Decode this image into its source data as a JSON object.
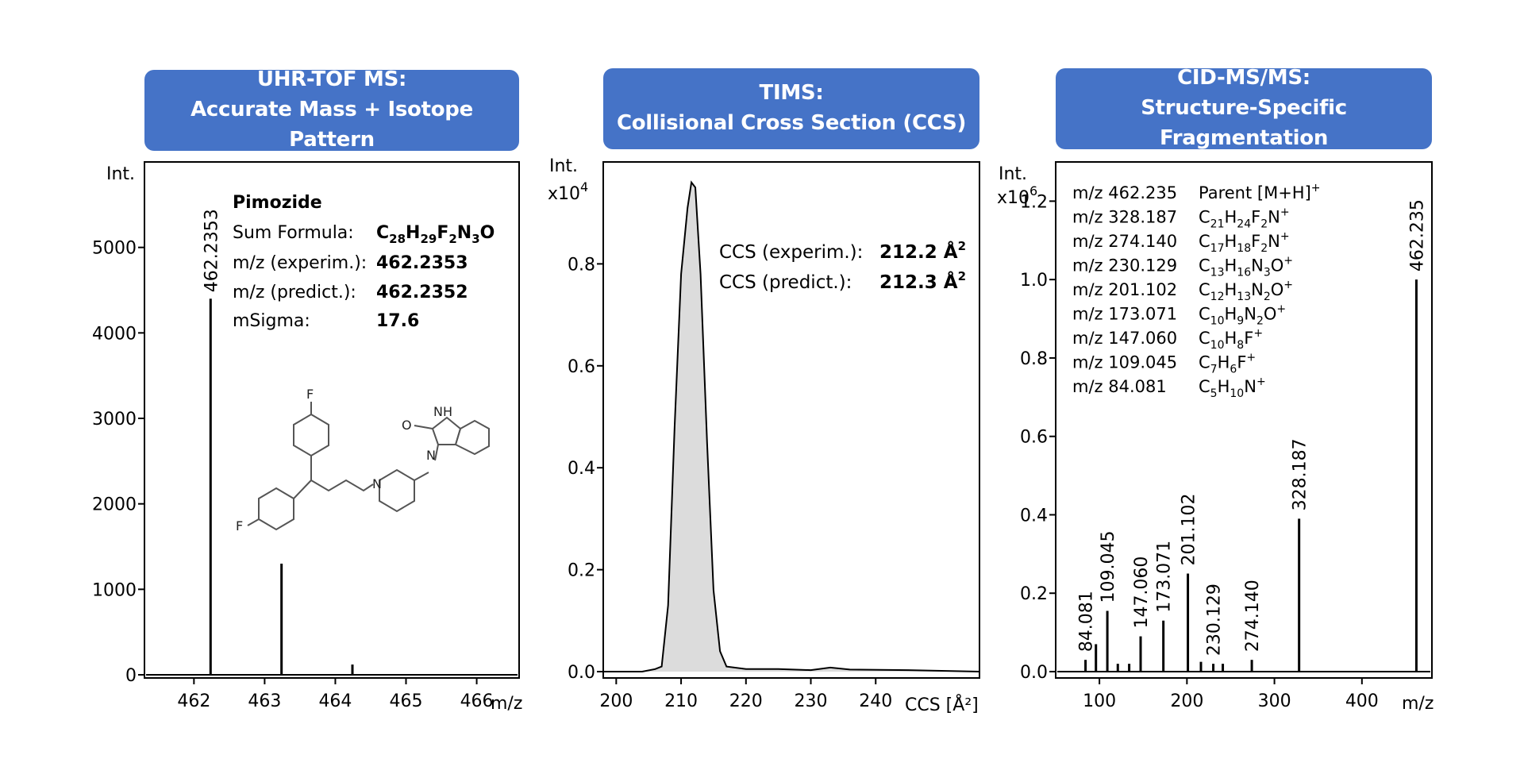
{
  "panels": [
    {
      "title_line1": "UHR-TOF MS:",
      "title_line2": "Accurate Mass + Isotope Pattern"
    },
    {
      "title_line1": "TIMS:",
      "title_line2": "Collisional Cross Section (CCS)"
    },
    {
      "title_line1": "CID-MS/MS:",
      "title_line2": "Structure-Specific Fragmentation"
    }
  ],
  "info_left": {
    "compound": "Pimozide",
    "rows": [
      {
        "label": "Sum Formula:",
        "value": "C28H29F2N3O",
        "value_rich": [
          [
            "C",
            ""
          ],
          [
            "28",
            "sub"
          ],
          [
            "H",
            ""
          ],
          [
            "29",
            "sub"
          ],
          [
            "F",
            ""
          ],
          [
            "2",
            "sub"
          ],
          [
            "N",
            ""
          ],
          [
            "3",
            "sub"
          ],
          [
            "O",
            ""
          ]
        ]
      },
      {
        "label": "m/z (experim.):",
        "value": "462.2353"
      },
      {
        "label": "m/z (predict.):",
        "value": "462.2352"
      },
      {
        "label": "mSigma:",
        "value": "17.6"
      }
    ]
  },
  "structure_atoms": {
    "fluoro_top": "F",
    "fluoro_bottom": "F",
    "amine_n": "N",
    "ring_n": "N",
    "carbonyl_o": "O",
    "imide_nh": "NH"
  },
  "info_middle": {
    "rows": [
      {
        "label": "CCS (experim.):",
        "value": "212.2 Å",
        "sup": "2"
      },
      {
        "label": "CCS (predict.):",
        "value": "212.3 Å",
        "sup": "2"
      }
    ]
  },
  "info_right": {
    "rows": [
      {
        "mz": "m/z 462.235",
        "formula": "Parent [M+H]+",
        "formula_rich": [
          [
            "Parent [M+H]",
            ""
          ],
          [
            "+",
            "sup"
          ]
        ]
      },
      {
        "mz": "m/z 328.187",
        "formula": "C21H24F2N+",
        "formula_rich": [
          [
            "C",
            ""
          ],
          [
            "21",
            "sub"
          ],
          [
            "H",
            ""
          ],
          [
            "24",
            "sub"
          ],
          [
            "F",
            ""
          ],
          [
            "2",
            "sub"
          ],
          [
            "N",
            ""
          ],
          [
            "+",
            "sup"
          ]
        ]
      },
      {
        "mz": "m/z 274.140",
        "formula": "C17H18F2N+",
        "formula_rich": [
          [
            "C",
            ""
          ],
          [
            "17",
            "sub"
          ],
          [
            "H",
            ""
          ],
          [
            "18",
            "sub"
          ],
          [
            "F",
            ""
          ],
          [
            "2",
            "sub"
          ],
          [
            "N",
            ""
          ],
          [
            "+",
            "sup"
          ]
        ]
      },
      {
        "mz": "m/z 230.129",
        "formula": "C13H16N3O+",
        "formula_rich": [
          [
            "C",
            ""
          ],
          [
            "13",
            "sub"
          ],
          [
            "H",
            ""
          ],
          [
            "16",
            "sub"
          ],
          [
            "N",
            ""
          ],
          [
            "3",
            "sub"
          ],
          [
            "O",
            ""
          ],
          [
            "+",
            "sup"
          ]
        ]
      },
      {
        "mz": "m/z 201.102",
        "formula": "C12H13N2O+",
        "formula_rich": [
          [
            "C",
            ""
          ],
          [
            "12",
            "sub"
          ],
          [
            "H",
            ""
          ],
          [
            "13",
            "sub"
          ],
          [
            "N",
            ""
          ],
          [
            "2",
            "sub"
          ],
          [
            "O",
            ""
          ],
          [
            "+",
            "sup"
          ]
        ]
      },
      {
        "mz": "m/z 173.071",
        "formula": "C10H9N2O+",
        "formula_rich": [
          [
            "C",
            ""
          ],
          [
            "10",
            "sub"
          ],
          [
            "H",
            ""
          ],
          [
            "9",
            "sub"
          ],
          [
            "N",
            ""
          ],
          [
            "2",
            "sub"
          ],
          [
            "O",
            ""
          ],
          [
            "+",
            "sup"
          ]
        ]
      },
      {
        "mz": "m/z 147.060",
        "formula": "C10H8F+",
        "formula_rich": [
          [
            "C",
            ""
          ],
          [
            "10",
            "sub"
          ],
          [
            "H",
            ""
          ],
          [
            "8",
            "sub"
          ],
          [
            "F",
            ""
          ],
          [
            "+",
            "sup"
          ]
        ]
      },
      {
        "mz": "m/z 109.045",
        "formula": "C7H6F+",
        "formula_rich": [
          [
            "C",
            ""
          ],
          [
            "7",
            "sub"
          ],
          [
            "H",
            ""
          ],
          [
            "6",
            "sub"
          ],
          [
            "F",
            ""
          ],
          [
            "+",
            "sup"
          ]
        ]
      },
      {
        "mz": "m/z 84.081",
        "formula": "C5H10N+",
        "formula_rich": [
          [
            "C",
            ""
          ],
          [
            "5",
            "sub"
          ],
          [
            "H",
            ""
          ],
          [
            "10",
            "sub"
          ],
          [
            "N",
            ""
          ],
          [
            "+",
            "sup"
          ]
        ]
      }
    ]
  },
  "chart_data": [
    {
      "type": "line",
      "title": "UHR-TOF MS: Accurate Mass + Isotope Pattern",
      "xlabel": "m/z",
      "ylabel": "Int.",
      "xlim": [
        461.3,
        466.6
      ],
      "ylim": [
        0,
        6000
      ],
      "xticks": [
        462,
        463,
        464,
        465,
        466
      ],
      "yticks": [
        0,
        1000,
        2000,
        3000,
        4000,
        5000
      ],
      "series": [
        {
          "x": [
            462.2353,
            463.239,
            464.242
          ],
          "y": [
            4400,
            1300,
            120
          ]
        }
      ],
      "peak_labels": [
        "462.2353"
      ]
    },
    {
      "type": "area",
      "title": "TIMS: Collisional Cross Section (CCS)",
      "xlabel": "CCS [Å²]",
      "ylabel": "Int.",
      "yscale_label": "x10",
      "yscale_exponent": "4",
      "xlim": [
        198,
        256
      ],
      "ylim": [
        0,
        1.0
      ],
      "xticks": [
        200,
        210,
        220,
        230,
        240
      ],
      "yticks": [
        0.0,
        0.2,
        0.4,
        0.6,
        0.8
      ],
      "series": [
        {
          "x": [
            198,
            204,
            206,
            207,
            208,
            209,
            210,
            211,
            211.6,
            212.2,
            213,
            214,
            215,
            216,
            217,
            220,
            225,
            230,
            233,
            236,
            245,
            256
          ],
          "y": [
            0.0,
            0.0,
            0.005,
            0.01,
            0.13,
            0.48,
            0.78,
            0.91,
            0.96,
            0.95,
            0.78,
            0.45,
            0.16,
            0.04,
            0.01,
            0.005,
            0.005,
            0.003,
            0.008,
            0.004,
            0.003,
            0.0
          ]
        }
      ]
    },
    {
      "type": "line",
      "title": "CID-MS/MS: Structure-Specific Fragmentation",
      "xlabel": "m/z",
      "ylabel": "Int.",
      "yscale_label": "x10",
      "yscale_exponent": "6",
      "xlim": [
        50,
        480
      ],
      "ylim": [
        0,
        1.3
      ],
      "xticks": [
        100,
        200,
        300,
        400
      ],
      "yticks": [
        0.0,
        0.2,
        0.4,
        0.6,
        0.8,
        1.0,
        1.2
      ],
      "series": [
        {
          "x": [
            84.081,
            96,
            109.045,
            121,
            134,
            147.06,
            173.071,
            201.102,
            216,
            230.129,
            241,
            274.14,
            328.187,
            462.235
          ],
          "y": [
            0.03,
            0.07,
            0.155,
            0.02,
            0.02,
            0.09,
            0.13,
            0.25,
            0.025,
            0.02,
            0.02,
            0.03,
            0.39,
            1.0
          ]
        }
      ],
      "peak_labels": [
        "84.081",
        "109.045",
        "147.060",
        "173.071",
        "201.102",
        "230.129",
        "274.140",
        "328.187",
        "462.235"
      ]
    }
  ]
}
